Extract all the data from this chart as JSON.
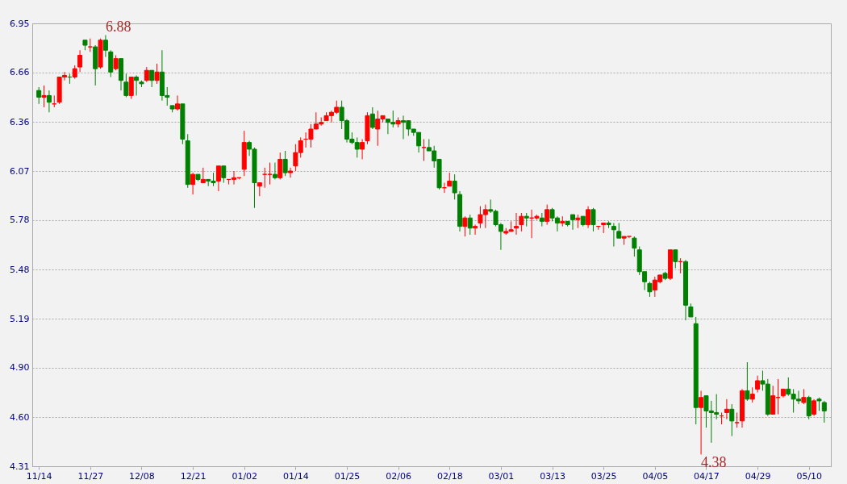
{
  "chart_data": {
    "type": "candlestick",
    "categories": [
      "11/14",
      null,
      null,
      null,
      null,
      null,
      null,
      null,
      null,
      null,
      "11/27",
      null,
      null,
      null,
      null,
      null,
      null,
      null,
      null,
      null,
      "12/08",
      null,
      null,
      null,
      null,
      null,
      null,
      null,
      null,
      null,
      "12/21",
      null,
      null,
      null,
      null,
      null,
      null,
      null,
      null,
      null,
      "01/02",
      null,
      null,
      null,
      null,
      null,
      null,
      null,
      null,
      null,
      "01/14",
      null,
      null,
      null,
      null,
      null,
      null,
      null,
      null,
      null,
      "01/25",
      null,
      null,
      null,
      null,
      null,
      null,
      null,
      null,
      null,
      "02/06",
      null,
      null,
      null,
      null,
      null,
      null,
      null,
      null,
      null,
      "02/18",
      null,
      null,
      null,
      null,
      null,
      null,
      null,
      null,
      null,
      "03/01",
      null,
      null,
      null,
      null,
      null,
      null,
      null,
      null,
      null,
      "03/13",
      null,
      null,
      null,
      null,
      null,
      null,
      null,
      null,
      null,
      "03/25",
      null,
      null,
      null,
      null,
      null,
      null,
      null,
      null,
      null,
      "04/05",
      null,
      null,
      null,
      null,
      null,
      null,
      null,
      null,
      null,
      "04/17",
      null,
      null,
      null,
      null,
      null,
      null,
      null,
      null,
      null,
      "04/29",
      null,
      null,
      null,
      null,
      null,
      null,
      null,
      null,
      null,
      "05/10",
      null,
      null,
      null
    ],
    "ohlc": [
      [
        6.55,
        6.57,
        6.47,
        6.51
      ],
      [
        6.51,
        6.58,
        6.45,
        6.52
      ],
      [
        6.52,
        6.55,
        6.42,
        6.48
      ],
      [
        6.47,
        6.52,
        6.45,
        6.47
      ],
      [
        6.48,
        6.63,
        6.47,
        6.63
      ],
      [
        6.63,
        6.66,
        6.61,
        6.64
      ],
      [
        6.63,
        6.65,
        6.59,
        6.63
      ],
      [
        6.63,
        6.7,
        6.62,
        6.68
      ],
      [
        6.69,
        6.79,
        6.66,
        6.76
      ],
      [
        6.85,
        6.85,
        6.79,
        6.82
      ],
      [
        6.81,
        6.86,
        6.78,
        6.81
      ],
      [
        6.81,
        6.82,
        6.58,
        6.68
      ],
      [
        6.69,
        6.86,
        6.68,
        6.85
      ],
      [
        6.85,
        6.88,
        6.75,
        6.79
      ],
      [
        6.78,
        6.79,
        6.63,
        6.66
      ],
      [
        6.68,
        6.76,
        6.67,
        6.74
      ],
      [
        6.74,
        6.74,
        6.55,
        6.61
      ],
      [
        6.6,
        6.65,
        6.51,
        6.52
      ],
      [
        6.52,
        6.63,
        6.5,
        6.63
      ],
      [
        6.63,
        6.64,
        6.52,
        6.61
      ],
      [
        6.6,
        6.61,
        6.57,
        6.59
      ],
      [
        6.61,
        6.69,
        6.6,
        6.67
      ],
      [
        6.67,
        6.67,
        6.57,
        6.61
      ],
      [
        6.61,
        6.71,
        6.59,
        6.66
      ],
      [
        6.66,
        6.79,
        6.49,
        6.52
      ],
      [
        6.52,
        6.57,
        6.46,
        6.51
      ],
      [
        6.46,
        6.46,
        6.42,
        6.44
      ],
      [
        6.44,
        6.52,
        6.43,
        6.47
      ],
      [
        6.47,
        6.47,
        6.23,
        6.26
      ],
      [
        6.25,
        6.29,
        5.97,
        5.99
      ],
      [
        5.99,
        6.06,
        5.93,
        6.05
      ],
      [
        6.05,
        6.05,
        6.01,
        6.02
      ],
      [
        6.0,
        6.09,
        6.0,
        6.02
      ],
      [
        6.02,
        6.02,
        5.98,
        6.01
      ],
      [
        6.01,
        6.06,
        5.98,
        6.0
      ],
      [
        6.01,
        6.1,
        5.95,
        6.1
      ],
      [
        6.1,
        6.1,
        6.0,
        6.03
      ],
      [
        6.02,
        6.02,
        5.99,
        6.02
      ],
      [
        6.02,
        6.07,
        5.99,
        6.03
      ],
      [
        6.03,
        6.03,
        6.02,
        6.03
      ],
      [
        6.08,
        6.31,
        6.04,
        6.24
      ],
      [
        6.24,
        6.25,
        6.16,
        6.2
      ],
      [
        6.2,
        6.21,
        5.85,
        6.0
      ],
      [
        5.98,
        6.0,
        5.92,
        6.0
      ],
      [
        6.05,
        6.09,
        5.97,
        6.05
      ],
      [
        6.05,
        6.12,
        5.99,
        6.05
      ],
      [
        6.05,
        6.12,
        6.02,
        6.03
      ],
      [
        6.03,
        6.18,
        6.02,
        6.14
      ],
      [
        6.14,
        6.19,
        6.04,
        6.06
      ],
      [
        6.06,
        6.09,
        6.03,
        6.07
      ],
      [
        6.1,
        6.23,
        6.07,
        6.18
      ],
      [
        6.18,
        6.27,
        6.15,
        6.25
      ],
      [
        6.26,
        6.3,
        6.21,
        6.26
      ],
      [
        6.26,
        6.35,
        6.21,
        6.32
      ],
      [
        6.32,
        6.42,
        6.32,
        6.35
      ],
      [
        6.35,
        6.39,
        6.34,
        6.36
      ],
      [
        6.37,
        6.42,
        6.37,
        6.4
      ],
      [
        6.4,
        6.43,
        6.36,
        6.42
      ],
      [
        6.42,
        6.49,
        6.41,
        6.45
      ],
      [
        6.45,
        6.49,
        6.32,
        6.37
      ],
      [
        6.37,
        6.38,
        6.24,
        6.26
      ],
      [
        6.26,
        6.3,
        6.23,
        6.24
      ],
      [
        6.24,
        6.27,
        6.15,
        6.2
      ],
      [
        6.2,
        6.26,
        6.14,
        6.24
      ],
      [
        6.25,
        6.42,
        6.23,
        6.4
      ],
      [
        6.41,
        6.45,
        6.32,
        6.33
      ],
      [
        6.32,
        6.43,
        6.22,
        6.38
      ],
      [
        6.38,
        6.4,
        6.36,
        6.4
      ],
      [
        6.38,
        6.38,
        6.29,
        6.36
      ],
      [
        6.36,
        6.43,
        6.33,
        6.35
      ],
      [
        6.35,
        6.39,
        6.33,
        6.37
      ],
      [
        6.37,
        6.4,
        6.26,
        6.36
      ],
      [
        6.37,
        6.37,
        6.28,
        6.32
      ],
      [
        6.32,
        6.32,
        6.28,
        6.3
      ],
      [
        6.3,
        6.3,
        6.18,
        6.22
      ],
      [
        6.21,
        6.26,
        6.13,
        6.21
      ],
      [
        6.21,
        6.26,
        6.19,
        6.19
      ],
      [
        6.19,
        6.22,
        6.09,
        6.13
      ],
      [
        6.14,
        6.14,
        5.96,
        5.97
      ],
      [
        5.97,
        6.0,
        5.94,
        5.97
      ],
      [
        5.98,
        6.06,
        5.98,
        6.01
      ],
      [
        6.01,
        6.05,
        5.9,
        5.94
      ],
      [
        5.93,
        5.95,
        5.71,
        5.74
      ],
      [
        5.74,
        5.8,
        5.68,
        5.79
      ],
      [
        5.79,
        5.81,
        5.69,
        5.73
      ],
      [
        5.73,
        5.75,
        5.69,
        5.74
      ],
      [
        5.76,
        5.86,
        5.73,
        5.81
      ],
      [
        5.81,
        5.87,
        5.73,
        5.84
      ],
      [
        5.84,
        5.9,
        5.82,
        5.83
      ],
      [
        5.83,
        5.84,
        5.74,
        5.75
      ],
      [
        5.75,
        5.76,
        5.6,
        5.71
      ],
      [
        5.7,
        5.73,
        5.69,
        5.71
      ],
      [
        5.71,
        5.77,
        5.71,
        5.72
      ],
      [
        5.73,
        5.82,
        5.69,
        5.74
      ],
      [
        5.75,
        5.82,
        5.71,
        5.8
      ],
      [
        5.8,
        5.82,
        5.74,
        5.79
      ],
      [
        5.79,
        5.84,
        5.67,
        5.79
      ],
      [
        5.79,
        5.81,
        5.78,
        5.8
      ],
      [
        5.79,
        5.82,
        5.74,
        5.77
      ],
      [
        5.77,
        5.87,
        5.75,
        5.84
      ],
      [
        5.84,
        5.85,
        5.77,
        5.79
      ],
      [
        5.79,
        5.8,
        5.71,
        5.76
      ],
      [
        5.76,
        5.8,
        5.74,
        5.77
      ],
      [
        5.77,
        5.77,
        5.74,
        5.75
      ],
      [
        5.81,
        5.81,
        5.72,
        5.78
      ],
      [
        5.78,
        5.81,
        5.73,
        5.79
      ],
      [
        5.8,
        5.8,
        5.74,
        5.75
      ],
      [
        5.75,
        5.86,
        5.73,
        5.84
      ],
      [
        5.84,
        5.85,
        5.71,
        5.75
      ],
      [
        5.74,
        5.74,
        5.72,
        5.74
      ],
      [
        5.75,
        5.76,
        5.7,
        5.76
      ],
      [
        5.76,
        5.77,
        5.73,
        5.75
      ],
      [
        5.74,
        5.76,
        5.62,
        5.72
      ],
      [
        5.71,
        5.76,
        5.67,
        5.67
      ],
      [
        5.67,
        5.68,
        5.63,
        5.68
      ],
      [
        5.68,
        5.68,
        5.67,
        5.68
      ],
      [
        5.67,
        5.68,
        5.56,
        5.61
      ],
      [
        5.6,
        5.62,
        5.45,
        5.47
      ],
      [
        5.47,
        5.47,
        5.36,
        5.41
      ],
      [
        5.4,
        5.41,
        5.32,
        5.35
      ],
      [
        5.36,
        5.44,
        5.32,
        5.42
      ],
      [
        5.41,
        5.45,
        5.4,
        5.45
      ],
      [
        5.46,
        5.47,
        5.42,
        5.43
      ],
      [
        5.43,
        5.6,
        5.42,
        5.6
      ],
      [
        5.6,
        5.6,
        5.49,
        5.53
      ],
      [
        5.53,
        5.55,
        5.46,
        5.53
      ],
      [
        5.53,
        5.54,
        5.18,
        5.27
      ],
      [
        5.26,
        5.28,
        5.2,
        5.2
      ],
      [
        5.16,
        5.2,
        4.56,
        4.66
      ],
      [
        4.66,
        4.76,
        4.38,
        4.72
      ],
      [
        4.73,
        4.73,
        4.54,
        4.64
      ],
      [
        4.64,
        4.7,
        4.45,
        4.63
      ],
      [
        4.63,
        4.74,
        4.59,
        4.62
      ],
      [
        4.61,
        4.63,
        4.56,
        4.61
      ],
      [
        4.63,
        4.71,
        4.59,
        4.65
      ],
      [
        4.65,
        4.68,
        4.49,
        4.58
      ],
      [
        4.57,
        4.63,
        4.54,
        4.57
      ],
      [
        4.58,
        4.77,
        4.54,
        4.76
      ],
      [
        4.76,
        4.93,
        4.7,
        4.71
      ],
      [
        4.71,
        4.78,
        4.69,
        4.74
      ],
      [
        4.77,
        4.85,
        4.75,
        4.82
      ],
      [
        4.82,
        4.88,
        4.76,
        4.8
      ],
      [
        4.8,
        4.83,
        4.61,
        4.62
      ],
      [
        4.62,
        4.79,
        4.62,
        4.73
      ],
      [
        4.72,
        4.83,
        4.62,
        4.72
      ],
      [
        4.73,
        4.77,
        4.72,
        4.77
      ],
      [
        4.77,
        4.84,
        4.73,
        4.74
      ],
      [
        4.74,
        4.77,
        4.63,
        4.71
      ],
      [
        4.71,
        4.76,
        4.68,
        4.7
      ],
      [
        4.69,
        4.77,
        4.68,
        4.72
      ],
      [
        4.72,
        4.73,
        4.59,
        4.61
      ],
      [
        4.62,
        4.71,
        4.61,
        4.7
      ],
      [
        4.71,
        4.72,
        4.64,
        4.7
      ],
      [
        4.69,
        4.7,
        4.57,
        4.64
      ]
    ],
    "colors": [
      "#008000",
      "#ff0000",
      "#008000",
      "#ff0000",
      "#ff0000",
      "#ff0000",
      "#008000",
      "#ff0000",
      "#ff0000",
      "#008000",
      "#ff0000",
      "#008000",
      "#ff0000",
      "#008000",
      "#008000",
      "#ff0000",
      "#008000",
      "#008000",
      "#ff0000",
      "#008000",
      "#008000",
      "#ff0000",
      "#008000",
      "#ff0000",
      "#008000",
      "#008000",
      "#008000",
      "#ff0000",
      "#008000",
      "#008000",
      "#ff0000",
      "#008000",
      "#ff0000",
      "#008000",
      "#008000",
      "#ff0000",
      "#008000",
      "#ff0000",
      "#ff0000",
      "#ff0000",
      "#ff0000",
      "#008000",
      "#008000",
      "#ff0000",
      "#ff0000",
      "#ff0000",
      "#008000",
      "#ff0000",
      "#008000",
      "#ff0000",
      "#ff0000",
      "#ff0000",
      "#ff0000",
      "#ff0000",
      "#ff0000",
      "#ff0000",
      "#ff0000",
      "#ff0000",
      "#ff0000",
      "#008000",
      "#008000",
      "#008000",
      "#008000",
      "#ff0000",
      "#ff0000",
      "#008000",
      "#ff0000",
      "#ff0000",
      "#008000",
      "#008000",
      "#ff0000",
      "#008000",
      "#008000",
      "#008000",
      "#008000",
      "#ff0000",
      "#008000",
      "#008000",
      "#008000",
      "#ff0000",
      "#ff0000",
      "#008000",
      "#008000",
      "#ff0000",
      "#008000",
      "#ff0000",
      "#ff0000",
      "#ff0000",
      "#008000",
      "#008000",
      "#008000",
      "#ff0000",
      "#ff0000",
      "#ff0000",
      "#ff0000",
      "#008000",
      "#ff0000",
      "#ff0000",
      "#008000",
      "#ff0000",
      "#008000",
      "#008000",
      "#ff0000",
      "#008000",
      "#008000",
      "#ff0000",
      "#008000",
      "#ff0000",
      "#008000",
      "#ff0000",
      "#ff0000",
      "#008000",
      "#008000",
      "#008000",
      "#ff0000",
      "#ff0000",
      "#008000",
      "#008000",
      "#008000",
      "#008000",
      "#ff0000",
      "#ff0000",
      "#008000",
      "#ff0000",
      "#008000",
      "#ff0000",
      "#008000",
      "#008000",
      "#008000",
      "#ff0000",
      "#008000",
      "#008000",
      "#008000",
      "#ff0000",
      "#ff0000",
      "#008000",
      "#ff0000",
      "#ff0000",
      "#008000",
      "#ff0000",
      "#ff0000",
      "#008000",
      "#008000",
      "#ff0000",
      "#ff0000",
      "#ff0000",
      "#008000",
      "#008000",
      "#008000",
      "#ff0000",
      "#008000",
      "#ff0000",
      "#008000",
      "#008000"
    ],
    "ylim": [
      4.31,
      6.95
    ],
    "yticks": [
      4.31,
      {
        "value": 4.6033,
        "label": "4.60"
      },
      {
        "value": 4.8967,
        "label": "4.90"
      },
      5.19,
      {
        "value": 5.4833,
        "label": "5.48"
      },
      {
        "value": 5.7767,
        "label": "5.78"
      },
      6.07,
      {
        "value": 6.3633,
        "label": "6.36"
      },
      {
        "value": 6.6567,
        "label": "6.66"
      },
      6.95
    ],
    "grid": "y",
    "annotations": [
      "6.88",
      "4.38"
    ]
  }
}
